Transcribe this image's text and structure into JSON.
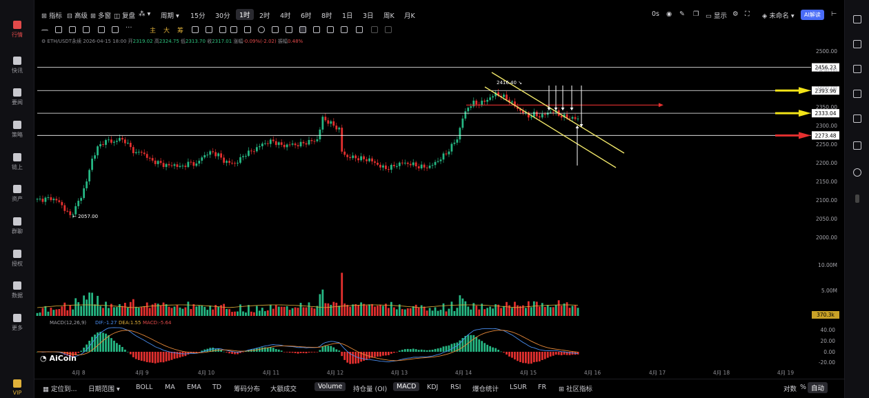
{
  "left_sidebar": {
    "items": [
      {
        "label": "行情",
        "icon": "chart-bar-icon",
        "active": true
      },
      {
        "label": "快讯",
        "icon": "news-flash-icon"
      },
      {
        "label": "要闻",
        "icon": "document-icon"
      },
      {
        "label": "策略",
        "icon": "robot-icon"
      },
      {
        "label": "链上",
        "icon": "chain-icon"
      },
      {
        "label": "资产",
        "icon": "wallet-icon"
      },
      {
        "label": "群聊",
        "icon": "chat-icon"
      },
      {
        "label": "授权",
        "icon": "key-icon"
      },
      {
        "label": "数据",
        "icon": "monitor-icon"
      },
      {
        "label": "更多",
        "icon": "grid-icon"
      },
      {
        "label": "VIP",
        "icon": "crown-icon"
      }
    ]
  },
  "top_toolbar": {
    "indicator": "指标",
    "advanced": "高级",
    "multi_window": "多窗",
    "replay": "复盘",
    "period": "周期",
    "intervals": [
      "15分",
      "30分",
      "1时",
      "2时",
      "4时",
      "6时",
      "8时",
      "1日",
      "3日",
      "周K",
      "月K"
    ],
    "active_interval": "1时",
    "countdown": "0s",
    "display": "显示",
    "unnamed": "未命名",
    "ai": "AI解读"
  },
  "draw_toolbar": {
    "labels": [
      "主",
      "大",
      "筹"
    ]
  },
  "info_line": {
    "symbol": "ETH/USDT永续",
    "time": "2026-04-15 18:00",
    "open_label": "开",
    "open": "2319.02",
    "high_label": "高",
    "high": "2324.75",
    "low_label": "低",
    "low": "2313.70",
    "close_label": "收",
    "close": "2317.01",
    "change_label": "涨幅",
    "change": "-0.09%(-2.02)",
    "amp_label": "振幅",
    "amp": "0.48%"
  },
  "chart_data": {
    "type": "candlestick",
    "price_axis": [
      "2500.00",
      "2450.00",
      "2400.00",
      "2350.00",
      "2300.00",
      "2250.00",
      "2200.00",
      "2150.00",
      "2100.00",
      "2050.00",
      "2000.00"
    ],
    "ylim": [
      2000,
      2500
    ],
    "date_axis": [
      "4月 8",
      "4月 9",
      "4月 10",
      "4月 11",
      "4月 12",
      "4月 13",
      "4月 14",
      "4月 15",
      "4月 16",
      "4月 17",
      "4月 18",
      "4月 19"
    ],
    "horizontal_levels": [
      {
        "value": "2456.23",
        "color": "#ffffff"
      },
      {
        "value": "2393.96",
        "color": "#ffffff"
      },
      {
        "value": "2333.04",
        "color": "#ffffff"
      },
      {
        "value": "2273.48",
        "color": "#ffffff"
      }
    ],
    "arrow_levels": [
      {
        "value": "2393.96",
        "color": "#f2e318"
      },
      {
        "value": "2333.04",
        "color": "#f2e318"
      },
      {
        "value": "2273.48",
        "color": "#e5302f"
      }
    ],
    "high_mark": "2416.40",
    "low_mark": "2057.00",
    "price_path": [
      [
        0,
        2100
      ],
      [
        5,
        2105
      ],
      [
        8,
        2095
      ],
      [
        10,
        2075
      ],
      [
        12,
        2057
      ],
      [
        14,
        2080
      ],
      [
        16,
        2110
      ],
      [
        18,
        2150
      ],
      [
        20,
        2210
      ],
      [
        22,
        2240
      ],
      [
        24,
        2255
      ],
      [
        26,
        2260
      ],
      [
        28,
        2255
      ],
      [
        30,
        2265
      ],
      [
        32,
        2258
      ],
      [
        34,
        2240
      ],
      [
        36,
        2225
      ],
      [
        38,
        2230
      ],
      [
        40,
        2215
      ],
      [
        42,
        2205
      ],
      [
        44,
        2200
      ],
      [
        46,
        2195
      ],
      [
        48,
        2192
      ],
      [
        50,
        2195
      ],
      [
        52,
        2188
      ],
      [
        54,
        2195
      ],
      [
        56,
        2200
      ],
      [
        58,
        2195
      ],
      [
        60,
        2215
      ],
      [
        62,
        2225
      ],
      [
        64,
        2228
      ],
      [
        66,
        2220
      ],
      [
        68,
        2205
      ],
      [
        70,
        2200
      ],
      [
        72,
        2198
      ],
      [
        74,
        2210
      ],
      [
        76,
        2225
      ],
      [
        78,
        2230
      ],
      [
        80,
        2240
      ],
      [
        82,
        2250
      ],
      [
        84,
        2255
      ],
      [
        86,
        2258
      ],
      [
        88,
        2250
      ],
      [
        90,
        2245
      ],
      [
        92,
        2250
      ],
      [
        94,
        2248
      ],
      [
        96,
        2250
      ],
      [
        98,
        2255
      ],
      [
        100,
        2258
      ],
      [
        102,
        2262
      ],
      [
        104,
        2320
      ],
      [
        106,
        2310
      ],
      [
        108,
        2300
      ],
      [
        110,
        2290
      ],
      [
        111,
        2230
      ],
      [
        113,
        2215
      ],
      [
        115,
        2215
      ],
      [
        117,
        2212
      ],
      [
        119,
        2210
      ],
      [
        121,
        2208
      ],
      [
        123,
        2200
      ],
      [
        125,
        2190
      ],
      [
        127,
        2185
      ],
      [
        129,
        2188
      ],
      [
        131,
        2195
      ],
      [
        133,
        2200
      ],
      [
        135,
        2198
      ],
      [
        137,
        2195
      ],
      [
        139,
        2190
      ],
      [
        141,
        2188
      ],
      [
        143,
        2190
      ],
      [
        145,
        2200
      ],
      [
        147,
        2212
      ],
      [
        149,
        2225
      ],
      [
        151,
        2245
      ],
      [
        153,
        2265
      ],
      [
        155,
        2320
      ],
      [
        157,
        2350
      ],
      [
        159,
        2360
      ],
      [
        161,
        2358
      ],
      [
        163,
        2365
      ],
      [
        165,
        2375
      ],
      [
        167,
        2385
      ],
      [
        169,
        2380
      ],
      [
        171,
        2372
      ],
      [
        173,
        2360
      ],
      [
        175,
        2345
      ],
      [
        177,
        2335
      ],
      [
        179,
        2325
      ],
      [
        181,
        2330
      ],
      [
        183,
        2325
      ],
      [
        185,
        2330
      ],
      [
        187,
        2338
      ],
      [
        189,
        2335
      ],
      [
        191,
        2325
      ],
      [
        193,
        2322
      ],
      [
        195,
        2320
      ],
      [
        197,
        2317
      ]
    ],
    "volume_axis": [
      "10.00M",
      "5.00M"
    ],
    "volume_value": "370.3k",
    "macd": {
      "title": "MACD(12,26,9)",
      "dif_label": "DIF",
      "dif": "-1.27",
      "dea_label": "DEA",
      "dea": "1.55",
      "macd_label": "MACD",
      "macd": "-5.64",
      "axis": [
        "40.00",
        "20.00",
        "0.00",
        "-20.00"
      ]
    }
  },
  "watermark": "AiCoin",
  "bottom_toolbar": {
    "locate": "定位到...",
    "date_range": "日期范围",
    "indicators": [
      "BOLL",
      "MA",
      "EMA",
      "TD",
      "筹码分布",
      "大额成交"
    ],
    "subcharts": [
      "Volume",
      "持仓量 (OI)",
      "MACD",
      "KDJ",
      "RSI",
      "爆仓统计",
      "LSUR",
      "FR"
    ],
    "community": "社区指标",
    "log": "对数",
    "percent": "%",
    "auto": "自动"
  }
}
